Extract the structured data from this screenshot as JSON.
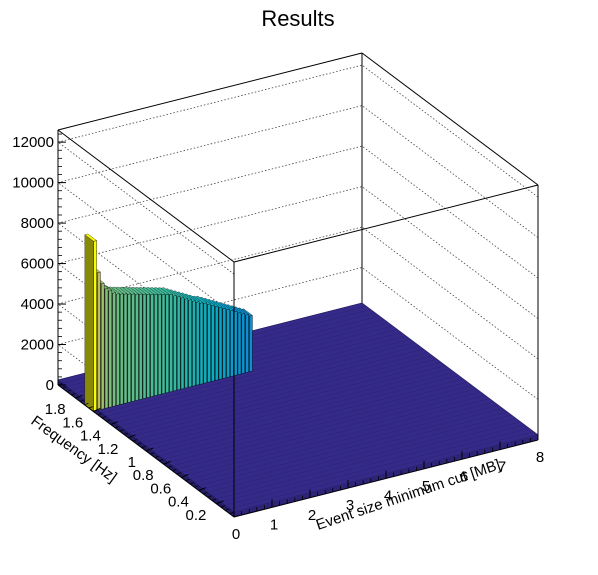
{
  "chart_data": {
    "type": "bar3d",
    "title": "Results",
    "xlabel": "Event size minimum cut [MB]",
    "ylabel": "Frequency [Hz]",
    "zlabel": "",
    "xlim": [
      0,
      8
    ],
    "ylim": [
      0,
      2
    ],
    "zlim": [
      0,
      12600
    ],
    "x_ticks": [
      "0",
      "1",
      "2",
      "3",
      "4",
      "5",
      "6",
      "7",
      "8"
    ],
    "y_ticks": [
      "0.2",
      "0.4",
      "0.6",
      "0.8",
      "1",
      "1.2",
      "1.4",
      "1.6",
      "1.8"
    ],
    "z_ticks": [
      "0",
      "2000",
      "4000",
      "6000",
      "8000",
      "10000",
      "12000"
    ],
    "grid": true,
    "palette": "kBird",
    "colors": {
      "low": "#352a87",
      "mid_low": "#0f5cdd",
      "mid": "#1481d6",
      "mid_high": "#06a7c6",
      "high": "#38b99e",
      "higher": "#92bf73",
      "top": "#d9ba56",
      "max": "#f8fa0d"
    },
    "peak_row": {
      "frequency_hz": 1.65,
      "x": [
        0.05,
        0.15,
        0.25,
        0.35,
        0.45,
        0.55,
        0.65,
        0.75,
        0.85,
        0.95,
        1.05,
        1.15,
        1.25,
        1.35,
        1.45,
        1.55,
        1.65,
        1.75,
        1.85,
        1.95,
        2.05,
        2.15,
        2.25,
        2.35,
        2.45,
        2.55,
        2.65,
        2.75,
        2.85,
        2.95,
        3.05,
        3.15,
        3.25,
        3.35,
        3.45,
        3.55,
        3.65,
        3.75,
        3.85,
        3.95,
        4.05,
        4.15
      ],
      "values": [
        8400,
        6800,
        6200,
        5900,
        5750,
        5600,
        5500,
        5450,
        5400,
        5350,
        5300,
        5250,
        5200,
        5150,
        5100,
        5050,
        5000,
        4950,
        4900,
        4850,
        4800,
        4700,
        4600,
        4500,
        4400,
        4300,
        4200,
        4100,
        4000,
        3950,
        3850,
        3750,
        3650,
        3550,
        3450,
        3350,
        3250,
        3150,
        3050,
        2950,
        2850,
        2750
      ]
    },
    "background_level": 250
  }
}
